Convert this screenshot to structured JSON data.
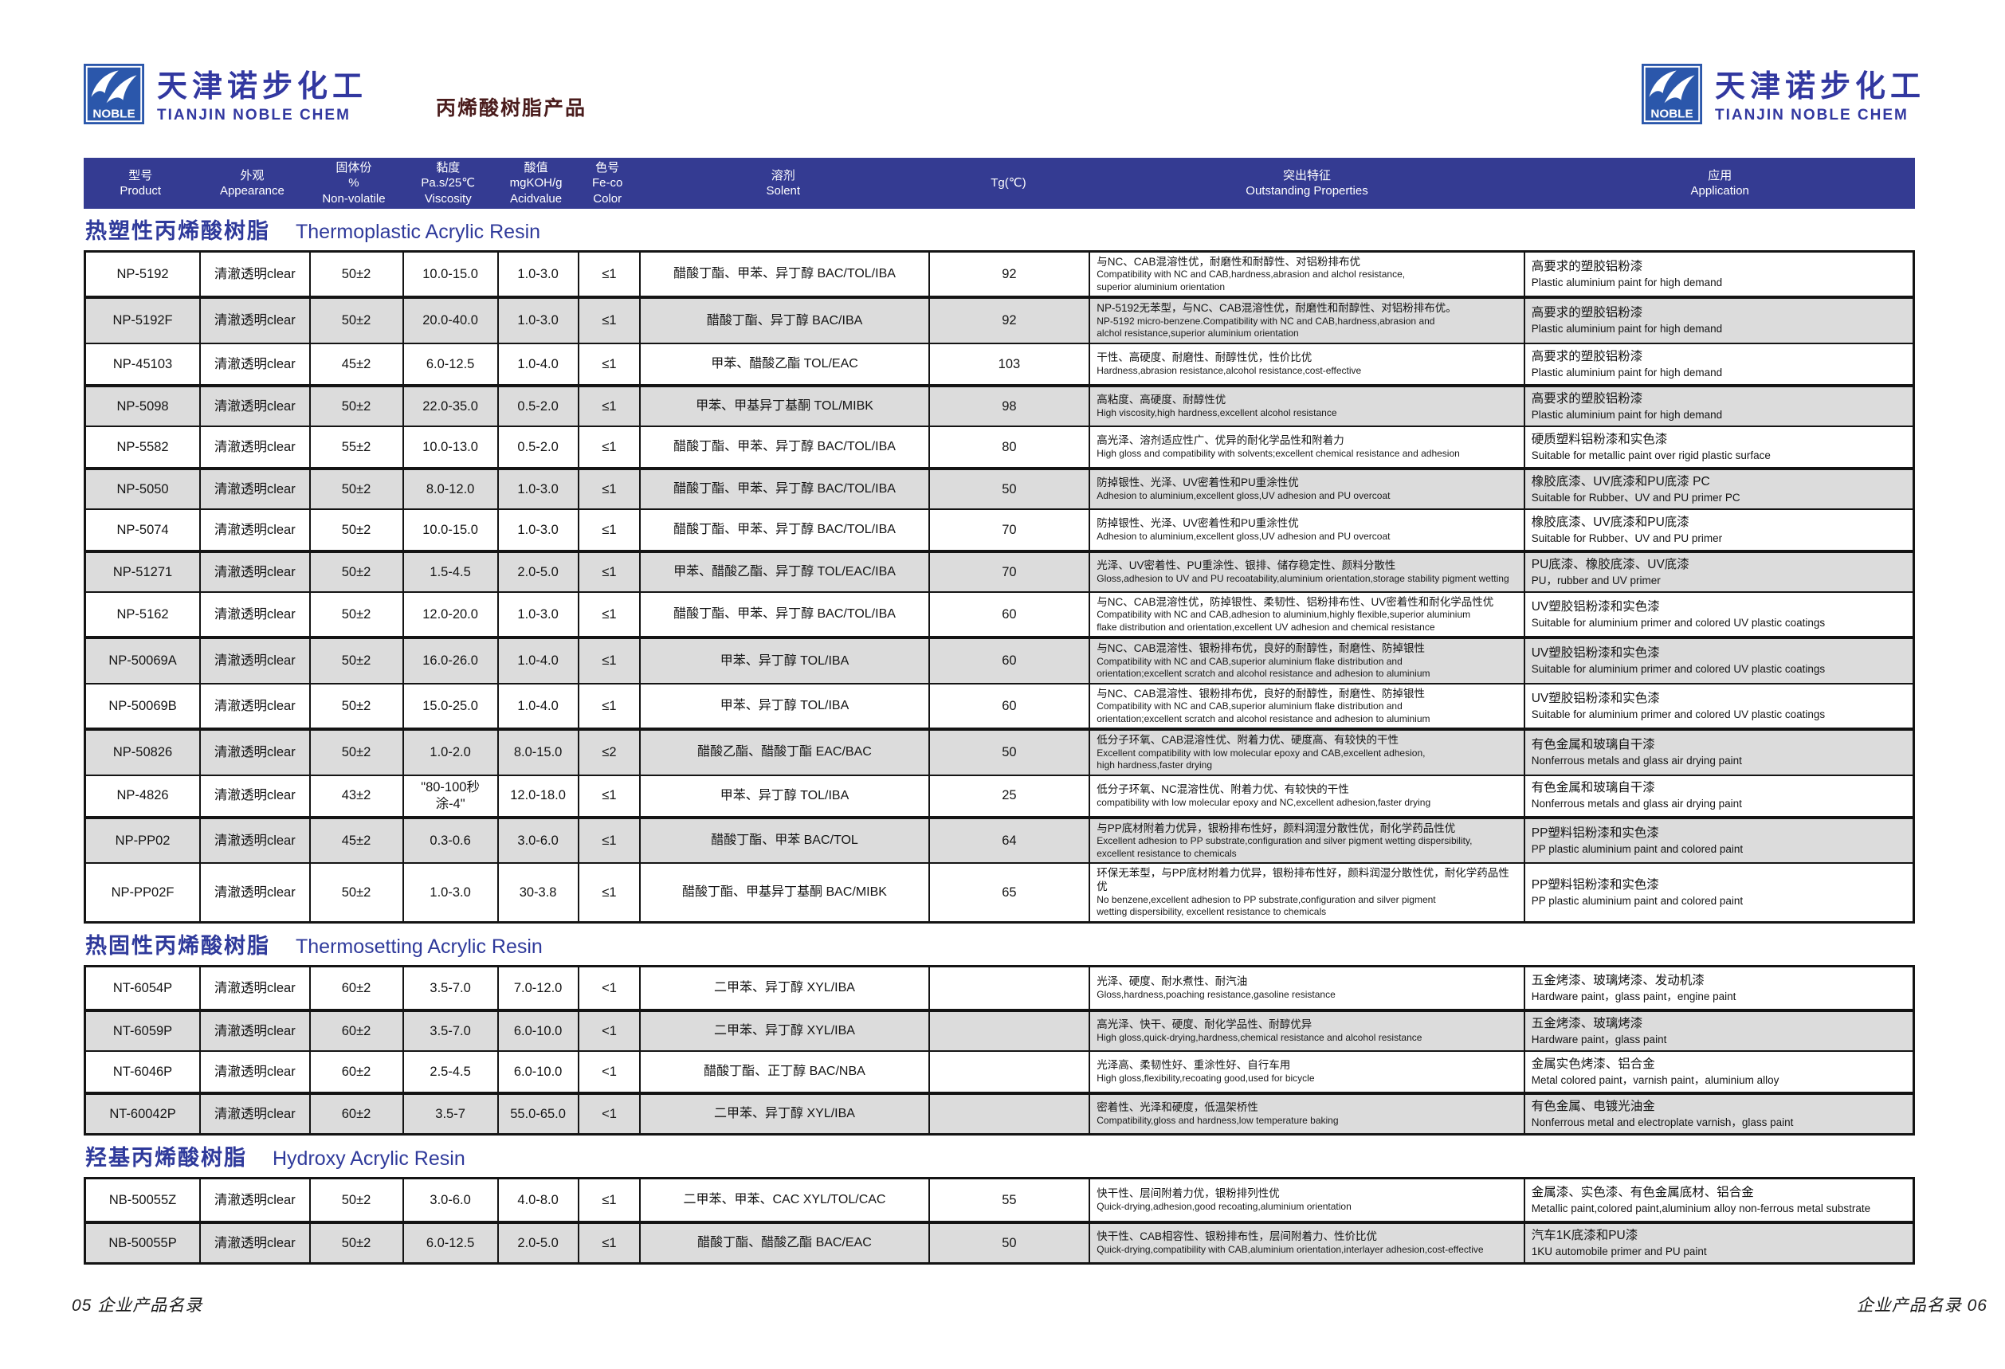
{
  "colors": {
    "header_bar": "#343b92",
    "section_title_blue": "#2f3a9b",
    "company_blue": "#3238a0",
    "logo_blue": "#2b57ab",
    "subtitle_dark_red": "#4a1c1c",
    "row_alt_gray": "#dcdcdc",
    "table_border": "#141414"
  },
  "page": {
    "brand": {
      "logo_text": "NOBLE",
      "company_cn": "天津诺步化工",
      "company_en": "TIANJIN NOBLE CHEM",
      "subtitle": "丙烯酸树脂产品"
    },
    "footer": {
      "left": "05  企业产品名录",
      "right": "企业产品名录  06"
    }
  },
  "columns": [
    {
      "key": "product",
      "lines": [
        "型号",
        "Product"
      ]
    },
    {
      "key": "appearance",
      "lines": [
        "外观",
        "Appearance"
      ]
    },
    {
      "key": "solids",
      "lines": [
        "固体份",
        "%",
        "Non-volatile"
      ]
    },
    {
      "key": "viscosity",
      "lines": [
        "黏度",
        "Pa.s/25℃",
        "Viscosity"
      ]
    },
    {
      "key": "acid",
      "lines": [
        "酸值",
        "mgKOH/g",
        "Acidvalue"
      ]
    },
    {
      "key": "color",
      "lines": [
        "色号",
        "Fe-co",
        "Color"
      ]
    },
    {
      "key": "solvent",
      "lines": [
        "溶剂",
        "Solent"
      ]
    },
    {
      "key": "tg",
      "lines": [
        "Tg(℃)"
      ]
    },
    {
      "key": "props",
      "lines": [
        "突出特征",
        "Outstanding Properties"
      ]
    },
    {
      "key": "app",
      "lines": [
        "应用",
        "Application"
      ]
    }
  ],
  "sections": [
    {
      "title_cn": "热塑性丙烯酸树脂",
      "title_en": "Thermoplastic  Acrylic Resin",
      "rows": [
        {
          "product": "NP-5192",
          "appearance": "清澈透明clear",
          "solids": "50±2",
          "viscosity": "10.0-15.0",
          "acid": "1.0-3.0",
          "color": "≤1",
          "solvent": "醋酸丁酯、甲苯、异丁醇  BAC/TOL/IBA",
          "tg": "92",
          "props_cn": "与NC、CAB混溶性优，耐磨性和耐醇性、对铝粉排布优",
          "props_en": "Compatibility with NC and CAB,hardness,abrasion and alchol resistance,\nsuperior aluminium orientation",
          "app_cn": "高要求的塑胶铝粉漆",
          "app_en": "Plastic aluminium paint for high demand"
        },
        {
          "product": "NP-5192F",
          "appearance": "清澈透明clear",
          "solids": "50±2",
          "viscosity": "20.0-40.0",
          "acid": "1.0-3.0",
          "color": "≤1",
          "solvent": "醋酸丁酯、异丁醇  BAC/IBA",
          "tg": "92",
          "props_cn": "NP-5192无苯型，与NC、CAB混溶性优，耐磨性和耐醇性、对铝粉排布优。",
          "props_en": "NP-5192 micro-benzene.Compatibility with NC and CAB,hardness,abrasion and\nalchol resistance,superior aluminium orientation",
          "app_cn": "高要求的塑胶铝粉漆",
          "app_en": "Plastic aluminium paint for high demand"
        },
        {
          "product": "NP-45103",
          "appearance": "清澈透明clear",
          "solids": "45±2",
          "viscosity": "6.0-12.5",
          "acid": "1.0-4.0",
          "color": "≤1",
          "solvent": "甲苯、醋酸乙酯  TOL/EAC",
          "tg": "103",
          "props_cn": "干性、高硬度、耐磨性、耐醇性优，性价比优",
          "props_en": "Hardness,abrasion resistance,alcohol resistance,cost-effective",
          "app_cn": "高要求的塑胶铝粉漆",
          "app_en": "Plastic aluminium paint for high demand"
        },
        {
          "product": "NP-5098",
          "appearance": "清澈透明clear",
          "solids": "50±2",
          "viscosity": "22.0-35.0",
          "acid": "0.5-2.0",
          "color": "≤1",
          "solvent": "甲苯、甲基异丁基酮   TOL/MIBK",
          "tg": "98",
          "props_cn": "高粘度、高硬度、耐醇性优",
          "props_en": "High viscosity,high hardness,excellent alcohol resistance",
          "app_cn": "高要求的塑胶铝粉漆",
          "app_en": "Plastic aluminium paint for high demand"
        },
        {
          "product": "NP-5582",
          "appearance": "清澈透明clear",
          "solids": "55±2",
          "viscosity": "10.0-13.0",
          "acid": "0.5-2.0",
          "color": "≤1",
          "solvent": "醋酸丁酯、甲苯、异丁醇  BAC/TOL/IBA",
          "tg": "80",
          "props_cn": "高光泽、溶剂适应性广、优异的耐化学品性和附着力",
          "props_en": "High gloss and compatibility with solvents;excellent chemical resistance and adhesion",
          "app_cn": "硬质塑料铝粉漆和实色漆",
          "app_en": "Suitable for metallic paint over rigid plastic surface"
        },
        {
          "product": "NP-5050",
          "appearance": "清澈透明clear",
          "solids": "50±2",
          "viscosity": "8.0-12.0",
          "acid": "1.0-3.0",
          "color": "≤1",
          "solvent": "醋酸丁酯、甲苯、异丁醇  BAC/TOL/IBA",
          "tg": "50",
          "props_cn": "防掉银性、光泽、UV密着性和PU重涂性优",
          "props_en": "Adhesion to aluminium,excellent gloss,UV adhesion and PU overcoat",
          "app_cn": "橡胶底漆、UV底漆和PU底漆 PC",
          "app_en": "Suitable for Rubber、UV and PU primer PC"
        },
        {
          "product": "NP-5074",
          "appearance": "清澈透明clear",
          "solids": "50±2",
          "viscosity": "10.0-15.0",
          "acid": "1.0-3.0",
          "color": "≤1",
          "solvent": "醋酸丁酯、甲苯、异丁醇  BAC/TOL/IBA",
          "tg": "70",
          "props_cn": "防掉银性、光泽、UV密着性和PU重涂性优",
          "props_en": "Adhesion to aluminium,excellent gloss,UV adhesion and PU overcoat",
          "app_cn": "橡胶底漆、UV底漆和PU底漆",
          "app_en": "Suitable for Rubber、UV and PU primer"
        },
        {
          "product": "NP-51271",
          "appearance": "清澈透明clear",
          "solids": "50±2",
          "viscosity": "1.5-4.5",
          "acid": "2.0-5.0",
          "color": "≤1",
          "solvent": "甲苯、醋酸乙酯、异丁醇  TOL/EAC/IBA",
          "tg": "70",
          "props_cn": "光泽、UV密着性、PU重涂性、银排、储存稳定性、颜料分散性",
          "props_en": "Gloss,adhesion to UV and PU recoatability,aluminium orientation,storage stability pigment wetting",
          "app_cn": "PU底漆、橡胶底漆、UV底漆",
          "app_en": "PU，rubber and UV primer"
        },
        {
          "product": "NP-5162",
          "appearance": "清澈透明clear",
          "solids": "50±2",
          "viscosity": "12.0-20.0",
          "acid": "1.0-3.0",
          "color": "≤1",
          "solvent": "醋酸丁酯、甲苯、异丁醇  BAC/TOL/IBA",
          "tg": "60",
          "props_cn": "与NC、CAB混溶性优，防掉银性、柔韧性、铝粉排布性、UV密着性和耐化学品性优",
          "props_en": "Compatibility with NC and CAB,adhesion to aluminium,highly flexible,superior aluminium\nflake distribution and orientation,excellent UV adhesion and chemical resistance",
          "app_cn": "UV塑胶铝粉漆和实色漆",
          "app_en": "Suitable for aluminium primer and colored UV plastic coatings"
        },
        {
          "product": "NP-50069A",
          "appearance": "清澈透明clear",
          "solids": "50±2",
          "viscosity": "16.0-26.0",
          "acid": "1.0-4.0",
          "color": "≤1",
          "solvent": "甲苯、异丁醇  TOL/IBA",
          "tg": "60",
          "props_cn": "与NC、CAB混溶性、银粉排布优，良好的耐醇性，耐磨性、防掉银性",
          "props_en": "Compatibility with NC and CAB,superior aluminium flake distribution and\norientation;excellent scratch and alcohol resistance and adhesion to aluminium",
          "app_cn": "UV塑胶铝粉漆和实色漆",
          "app_en": "Suitable for aluminium primer and colored UV plastic coatings"
        },
        {
          "product": "NP-50069B",
          "appearance": "清澈透明clear",
          "solids": "50±2",
          "viscosity": "15.0-25.0",
          "acid": "1.0-4.0",
          "color": "≤1",
          "solvent": "甲苯、异丁醇  TOL/IBA",
          "tg": "60",
          "props_cn": "与NC、CAB混溶性、银粉排布优，良好的耐醇性，耐磨性、防掉银性",
          "props_en": "Compatibility with NC and CAB,superior aluminium flake distribution and\norientation;excellent scratch and alcohol resistance and adhesion to aluminium",
          "app_cn": "UV塑胶铝粉漆和实色漆",
          "app_en": "Suitable for aluminium primer and colored UV plastic coatings"
        },
        {
          "product": "NP-50826",
          "appearance": "清澈透明clear",
          "solids": "50±2",
          "viscosity": "1.0-2.0",
          "acid": "8.0-15.0",
          "color": "≤2",
          "solvent": "醋酸乙酯、醋酸丁酯  EAC/BAC",
          "tg": "50",
          "props_cn": "低分子环氧、CAB混溶性优、附着力优、硬度高、有较快的干性",
          "props_en": "Excellent compatibility with low molecular epoxy and CAB,excellent adhesion,\nhigh hardness,faster drying",
          "app_cn": "有色金属和玻璃自干漆",
          "app_en": "Nonferrous metals and glass air drying paint"
        },
        {
          "product": "NP-4826",
          "appearance": "清澈透明clear",
          "solids": "43±2",
          "viscosity": "\"80-100秒\n涂-4\"",
          "acid": "12.0-18.0",
          "color": "≤1",
          "solvent": "甲苯、异丁醇   TOL/IBA",
          "tg": "25",
          "props_cn": "低分子环氧、NC混溶性优、附着力优、有较快的干性",
          "props_en": "compatibility with low molecular epoxy and NC,excellent adhesion,faster drying",
          "app_cn": "有色金属和玻璃自干漆",
          "app_en": "Nonferrous metals and glass air drying paint"
        },
        {
          "product": "NP-PP02",
          "appearance": "清澈透明clear",
          "solids": "45±2",
          "viscosity": "0.3-0.6",
          "acid": "3.0-6.0",
          "color": "≤1",
          "solvent": "醋酸丁酯、甲苯  BAC/TOL",
          "tg": "64",
          "props_cn": "与PP底材附着力优异，银粉排布性好，颜料润湿分散性优，耐化学药品性优",
          "props_en": "Excellent adhesion to PP substrate,configuration and silver pigment wetting dispersibility,\nexcellent resistance to chemicals",
          "app_cn": "PP塑料铝粉漆和实色漆",
          "app_en": "PP plastic aluminium  paint and colored paint"
        },
        {
          "product": "NP-PP02F",
          "appearance": "清澈透明clear",
          "solids": "50±2",
          "viscosity": "1.0-3.0",
          "acid": "30-3.8",
          "color": "≤1",
          "solvent": "醋酸丁酯、甲基异丁基酮   BAC/MIBK",
          "tg": "65",
          "props_cn": "环保无苯型，与PP底材附着力优异，银粉排布性好，颜料润湿分散性优，耐化学药品性优",
          "props_en": "No benzene,excellent adhesion to PP substrate,configuration and silver pigment\nwetting dispersibility, excellent resistance to chemicals",
          "app_cn": "PP塑料铝粉漆和实色漆",
          "app_en": "PP plastic aluminium  paint and colored paint"
        }
      ]
    },
    {
      "title_cn": "热固性丙烯酸树脂",
      "title_en": "Thermosetting Acrylic Resin",
      "rows": [
        {
          "product": "NT-6054P",
          "appearance": "清澈透明clear",
          "solids": "60±2",
          "viscosity": "3.5-7.0",
          "acid": "7.0-12.0",
          "color": "<1",
          "solvent": "二甲苯、异丁醇   XYL/IBA",
          "tg": "",
          "props_cn": "光泽、硬度、耐水煮性、耐汽油",
          "props_en": "Gloss,hardness,poaching resistance,gasoline resistance",
          "app_cn": "五金烤漆、玻璃烤漆、发动机漆",
          "app_en": "Hardware paint，glass paint，engine paint"
        },
        {
          "product": "NT-6059P",
          "appearance": "清澈透明clear",
          "solids": "60±2",
          "viscosity": "3.5-7.0",
          "acid": "6.0-10.0",
          "color": "<1",
          "solvent": "二甲苯、异丁醇   XYL/IBA",
          "tg": "",
          "props_cn": "高光泽、快干、硬度、耐化学品性、耐醇优异",
          "props_en": "High gloss,quick-drying,hardness,chemical resistance and alcohol resistance",
          "app_cn": "五金烤漆、玻璃烤漆",
          "app_en": "Hardware paint，glass paint"
        },
        {
          "product": "NT-6046P",
          "appearance": "清澈透明clear",
          "solids": "60±2",
          "viscosity": "2.5-4.5",
          "acid": "6.0-10.0",
          "color": "<1",
          "solvent": "醋酸丁酯、正丁醇   BAC/NBA",
          "tg": "",
          "props_cn": "光泽高、柔韧性好、重涂性好、自行车用",
          "props_en": "High gloss,flexibility,recoating good,used for bicycle",
          "app_cn": "金属实色烤漆、铝合金",
          "app_en": "Metal colored paint，varnish paint，aluminium alloy"
        },
        {
          "product": "NT-60042P",
          "appearance": "清澈透明clear",
          "solids": "60±2",
          "viscosity": "3.5-7",
          "acid": "55.0-65.0",
          "color": "<1",
          "solvent": "二甲苯、异丁醇   XYL/IBA",
          "tg": "",
          "props_cn": "密着性、光泽和硬度，低温架桥性",
          "props_en": "Compatibility,gloss and hardness,low temperature baking",
          "app_cn": "有色金属、电镀光油金",
          "app_en": "Nonferrous metal and electroplate varnish，glass paint"
        }
      ]
    },
    {
      "title_cn": "羟基丙烯酸树脂",
      "title_en": "Hydroxy Acrylic Resin",
      "rows": [
        {
          "product": "NB-50055Z",
          "appearance": "清澈透明clear",
          "solids": "50±2",
          "viscosity": "3.0-6.0",
          "acid": "4.0-8.0",
          "color": "≤1",
          "solvent": "二甲苯、甲苯、CAC  XYL/TOL/CAC",
          "tg": "55",
          "props_cn": "快干性、层间附着力优，银粉排列性优",
          "props_en": "Quick-drying,adhesion,good recoating,aluminium orientation",
          "app_cn": "金属漆、实色漆、有色金属底材、铝合金",
          "app_en": "Metallic paint,colored paint,aluminium alloy non-ferrous metal substrate"
        },
        {
          "product": "NB-50055P",
          "appearance": "清澈透明clear",
          "solids": "50±2",
          "viscosity": "6.0-12.5",
          "acid": "2.0-5.0",
          "color": "≤1",
          "solvent": "醋酸丁酯、醋酸乙酯  BAC/EAC",
          "tg": "50",
          "props_cn": "快干性、CAB相容性、银粉排布性，层间附着力、性价比优",
          "props_en": "Quick-drying,compatibility with CAB,aluminium orientation,interlayer adhesion,cost-effective",
          "app_cn": "汽车1K底漆和PU漆",
          "app_en": "1KU automobile primer and PU paint"
        }
      ]
    }
  ]
}
